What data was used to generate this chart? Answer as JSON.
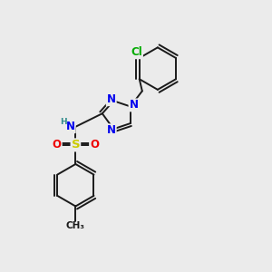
{
  "background_color": "#ebebeb",
  "bond_color": "#1a1a1a",
  "bond_width": 1.4,
  "atom_colors": {
    "N": "#0000ee",
    "H": "#2e8b8b",
    "S": "#cccc00",
    "O": "#ee0000",
    "Cl": "#00aa00",
    "C": "#1a1a1a"
  },
  "font_size": 8.5,
  "fig_size": [
    3.0,
    3.0
  ],
  "dpi": 100,
  "xlim": [
    0.0,
    8.5
  ],
  "ylim": [
    -0.5,
    9.0
  ]
}
